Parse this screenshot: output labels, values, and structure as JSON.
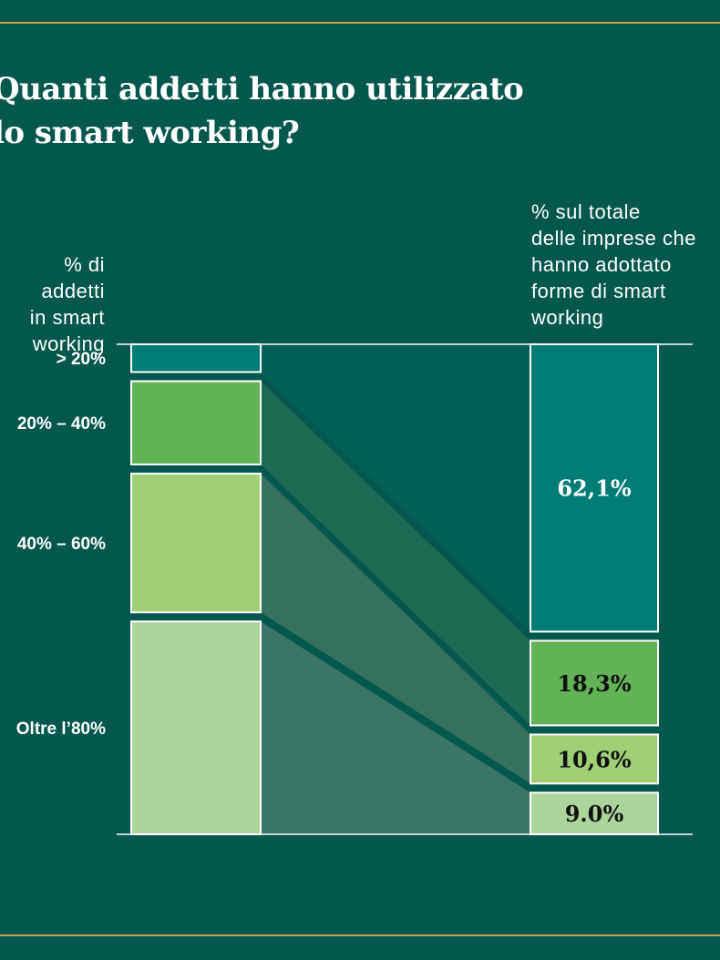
{
  "colors": {
    "background": "#03574d",
    "rule": "#c9a24a",
    "seg1": "#007c77",
    "seg2": "#62b256",
    "seg3": "#9fd075",
    "seg4": "#acd59c",
    "flow1": "#006057",
    "flow2": "#1d6a52",
    "flow3": "#36715e",
    "flow4": "#3b7566"
  },
  "chart_data": {
    "type": "bar",
    "title": "Quanti addetti hanno utilizzato\nlo smart working?",
    "xlabel": "% di addetti\nin smart\nworking",
    "ylabel": "% sul totale\ndelle imprese che\nhanno adottato\nforme di smart\nworking",
    "categories": [
      "> 20%",
      "20% – 40%",
      "40% – 60%",
      "Oltre l’80%"
    ],
    "series": [
      {
        "values": [
          62.1,
          18.3,
          10.6,
          9.0
        ]
      }
    ],
    "value_labels": [
      "62,1%",
      "18,3%",
      "10,6%",
      "9.0%"
    ],
    "left_shares": [
      6,
      18,
      30,
      46
    ],
    "ylim": [
      0,
      100
    ],
    "grid": false,
    "legend": "none"
  }
}
